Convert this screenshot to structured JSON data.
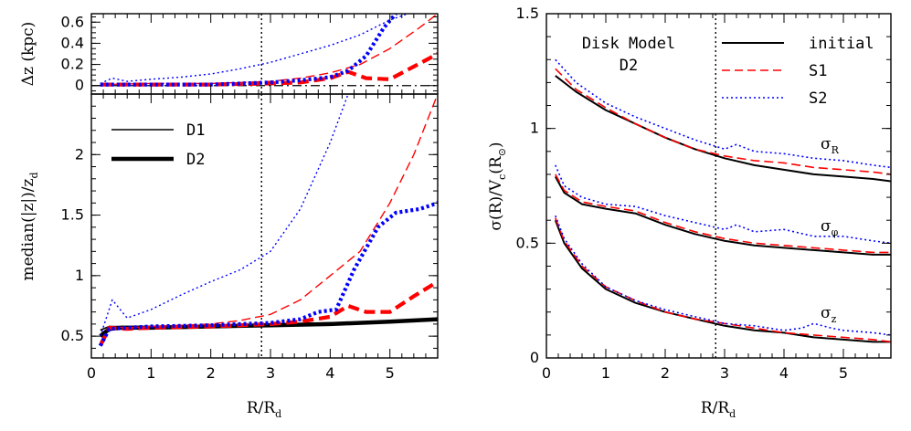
{
  "colors": {
    "black": "#000000",
    "red": "#ff0000",
    "blue": "#0000ff"
  },
  "panels": {
    "top_left": {
      "ylabel": "Δz (kpc)",
      "yticks": [
        "0",
        "0.2",
        "0.4",
        "0.6"
      ],
      "xticks": []
    },
    "bottom_left": {
      "ylabel_main": "median(|z|)/z",
      "ylabel_sub": "d",
      "xlabel_main": "R/R",
      "xlabel_sub": "d",
      "yticks": [
        "0.5",
        "1",
        "1.5",
        "2"
      ],
      "xticks": [
        "0",
        "1",
        "2",
        "3",
        "4",
        "5"
      ],
      "legend": {
        "d1": "D1",
        "d2": "D2"
      }
    },
    "right": {
      "ylabel": "σ(R)/V",
      "ylabel_c": "c",
      "ylabel_tail": "(R",
      "ylabel_sun": "⊙",
      "ylabel_close": ")",
      "xlabel_main": "R/R",
      "xlabel_sub": "d",
      "yticks": [
        "0",
        "0.5",
        "1",
        "1.5"
      ],
      "xticks": [
        "0",
        "1",
        "2",
        "3",
        "4",
        "5"
      ],
      "title_line1": "Disk Model",
      "title_line2": "D2",
      "legend": {
        "initial": "initial",
        "s1": "S1",
        "s2": "S2"
      },
      "labels": {
        "sigma": "σ",
        "r": "R",
        "phi": "φ",
        "z": "z"
      }
    }
  },
  "chart_data": [
    {
      "type": "line",
      "panel": "top_left",
      "ylabel": "Δz (kpc)",
      "xlim": [
        0,
        5.8
      ],
      "ylim": [
        -0.08,
        0.68
      ],
      "vline_x": 2.85,
      "hline_y": 0,
      "series": [
        {
          "color": "red",
          "style": "dashed",
          "weight": "thin",
          "x": [
            0.15,
            1,
            2,
            2.5,
            3,
            3.5,
            4,
            4.5,
            5,
            5.5,
            5.8
          ],
          "y": [
            0.01,
            0.02,
            0.02,
            0.03,
            0.04,
            0.07,
            0.12,
            0.2,
            0.35,
            0.55,
            0.68
          ]
        },
        {
          "color": "blue",
          "style": "dotted",
          "weight": "thin",
          "x": [
            0.15,
            0.35,
            0.6,
            1,
            1.5,
            2,
            2.5,
            3,
            3.5,
            4,
            4.5,
            5,
            5.3
          ],
          "y": [
            0.02,
            0.07,
            0.04,
            0.06,
            0.08,
            0.11,
            0.16,
            0.22,
            0.3,
            0.38,
            0.48,
            0.62,
            0.68
          ]
        },
        {
          "color": "red",
          "style": "dashed",
          "weight": "thick",
          "x": [
            0.15,
            1,
            2,
            3,
            3.5,
            4,
            4.3,
            4.6,
            5,
            5.4,
            5.8
          ],
          "y": [
            0.01,
            0.01,
            0.01,
            0.02,
            0.03,
            0.07,
            0.13,
            0.07,
            0.06,
            0.18,
            0.3
          ]
        },
        {
          "color": "blue",
          "style": "dotted",
          "weight": "thick",
          "x": [
            0.15,
            1,
            2,
            3,
            3.5,
            4,
            4.3,
            4.6,
            4.9,
            5.1
          ],
          "y": [
            0.01,
            0.01,
            0.01,
            0.03,
            0.05,
            0.08,
            0.14,
            0.28,
            0.55,
            0.68
          ]
        }
      ]
    },
    {
      "type": "line",
      "panel": "bottom_left",
      "ylabel": "median(|z|)/z_d",
      "xlabel": "R/R_d",
      "xlim": [
        0,
        5.8
      ],
      "ylim": [
        0.32,
        2.5
      ],
      "vline_x": 2.85,
      "series": [
        {
          "name": "D1",
          "color": "black",
          "style": "solid",
          "weight": "thin",
          "x": [
            0.15,
            0.3,
            0.5,
            1,
            2,
            3,
            4,
            5,
            5.8
          ],
          "y": [
            0.55,
            0.58,
            0.58,
            0.58,
            0.59,
            0.6,
            0.61,
            0.62,
            0.63
          ]
        },
        {
          "name": "D2",
          "color": "black",
          "style": "solid",
          "weight": "thick",
          "x": [
            0.15,
            0.3,
            0.5,
            1,
            2,
            3,
            4,
            5,
            5.8
          ],
          "y": [
            0.5,
            0.56,
            0.57,
            0.57,
            0.58,
            0.59,
            0.6,
            0.62,
            0.64
          ]
        },
        {
          "color": "red",
          "style": "dashed",
          "weight": "thin",
          "x": [
            0.15,
            0.3,
            0.6,
            1,
            2,
            2.5,
            3,
            3.5,
            4,
            4.5,
            5,
            5.4,
            5.8
          ],
          "y": [
            0.45,
            0.58,
            0.57,
            0.58,
            0.6,
            0.63,
            0.68,
            0.8,
            1.0,
            1.2,
            1.6,
            2.0,
            2.5
          ]
        },
        {
          "color": "blue",
          "style": "dotted",
          "weight": "thin",
          "x": [
            0.15,
            0.35,
            0.6,
            1,
            1.5,
            2,
            2.5,
            3,
            3.5,
            4,
            4.3
          ],
          "y": [
            0.5,
            0.8,
            0.65,
            0.72,
            0.84,
            0.95,
            1.05,
            1.2,
            1.55,
            2.1,
            2.5
          ]
        },
        {
          "color": "red",
          "style": "dashed",
          "weight": "thick",
          "x": [
            0.15,
            0.3,
            0.6,
            1,
            2,
            3,
            3.5,
            4,
            4.3,
            4.6,
            5,
            5.4,
            5.8
          ],
          "y": [
            0.42,
            0.57,
            0.56,
            0.57,
            0.58,
            0.6,
            0.62,
            0.66,
            0.75,
            0.7,
            0.7,
            0.83,
            0.95
          ]
        },
        {
          "color": "blue",
          "style": "dotted",
          "weight": "thick",
          "x": [
            0.15,
            0.3,
            0.6,
            1,
            2,
            3,
            3.5,
            3.8,
            4.1,
            4.4,
            4.8,
            5.1,
            5.5,
            5.8
          ],
          "y": [
            0.42,
            0.56,
            0.57,
            0.58,
            0.59,
            0.61,
            0.64,
            0.7,
            0.72,
            1.05,
            1.4,
            1.52,
            1.55,
            1.6
          ]
        }
      ]
    },
    {
      "type": "line",
      "panel": "right",
      "ylabel": "σ(R)/V_c(R_⊙)",
      "xlabel": "R/R_d",
      "xlim": [
        0,
        5.8
      ],
      "ylim": [
        0,
        1.5
      ],
      "vline_x": 2.85,
      "series": [
        {
          "name": "initial",
          "color": "black",
          "style": "solid",
          "group": "sigma_R",
          "x": [
            0.15,
            0.5,
            1,
            1.5,
            2,
            2.5,
            3,
            3.5,
            4,
            4.5,
            5,
            5.5,
            5.8
          ],
          "y": [
            1.23,
            1.16,
            1.08,
            1.02,
            0.96,
            0.91,
            0.87,
            0.84,
            0.82,
            0.8,
            0.79,
            0.78,
            0.77
          ]
        },
        {
          "name": "S1",
          "color": "red",
          "style": "dashed",
          "group": "sigma_R",
          "x": [
            0.15,
            0.5,
            1,
            1.5,
            2,
            2.5,
            3,
            3.5,
            4,
            4.5,
            5,
            5.5,
            5.8
          ],
          "y": [
            1.26,
            1.17,
            1.09,
            1.02,
            0.96,
            0.91,
            0.88,
            0.86,
            0.85,
            0.83,
            0.82,
            0.81,
            0.8
          ]
        },
        {
          "name": "S2",
          "color": "blue",
          "style": "dotted",
          "group": "sigma_R",
          "x": [
            0.15,
            0.5,
            1,
            1.5,
            2,
            2.5,
            3,
            3.2,
            3.5,
            4,
            4.5,
            5,
            5.5,
            5.8
          ],
          "y": [
            1.3,
            1.2,
            1.11,
            1.05,
            1.0,
            0.95,
            0.91,
            0.93,
            0.9,
            0.89,
            0.87,
            0.86,
            0.84,
            0.83
          ]
        },
        {
          "color": "black",
          "style": "solid",
          "group": "sigma_phi",
          "x": [
            0.15,
            0.3,
            0.6,
            1,
            1.5,
            2,
            2.5,
            3,
            3.5,
            4,
            4.5,
            5,
            5.5,
            5.8
          ],
          "y": [
            0.79,
            0.72,
            0.67,
            0.65,
            0.63,
            0.58,
            0.54,
            0.51,
            0.49,
            0.48,
            0.47,
            0.46,
            0.45,
            0.45
          ]
        },
        {
          "color": "red",
          "style": "dashed",
          "group": "sigma_phi",
          "x": [
            0.15,
            0.3,
            0.6,
            1,
            1.5,
            2,
            2.5,
            3,
            3.5,
            4,
            4.5,
            5,
            5.5,
            5.8
          ],
          "y": [
            0.8,
            0.73,
            0.68,
            0.66,
            0.64,
            0.59,
            0.55,
            0.52,
            0.5,
            0.49,
            0.48,
            0.47,
            0.46,
            0.46
          ]
        },
        {
          "color": "blue",
          "style": "dotted",
          "group": "sigma_phi",
          "x": [
            0.15,
            0.3,
            0.6,
            1,
            1.5,
            2,
            2.5,
            3,
            3.2,
            3.5,
            4,
            4.5,
            5,
            5.5,
            5.8
          ],
          "y": [
            0.84,
            0.75,
            0.7,
            0.67,
            0.66,
            0.62,
            0.59,
            0.56,
            0.58,
            0.55,
            0.56,
            0.53,
            0.53,
            0.51,
            0.5
          ]
        },
        {
          "color": "black",
          "style": "solid",
          "group": "sigma_z",
          "x": [
            0.15,
            0.3,
            0.6,
            1,
            1.5,
            2,
            2.5,
            3,
            3.5,
            4,
            4.5,
            5,
            5.5,
            5.8
          ],
          "y": [
            0.6,
            0.5,
            0.39,
            0.3,
            0.24,
            0.2,
            0.17,
            0.14,
            0.12,
            0.11,
            0.09,
            0.08,
            0.07,
            0.07
          ]
        },
        {
          "color": "red",
          "style": "dashed",
          "group": "sigma_z",
          "x": [
            0.15,
            0.3,
            0.6,
            1,
            1.5,
            2,
            2.5,
            3,
            3.5,
            4,
            4.5,
            5,
            5.5,
            5.8
          ],
          "y": [
            0.61,
            0.51,
            0.4,
            0.31,
            0.25,
            0.2,
            0.17,
            0.15,
            0.13,
            0.11,
            0.1,
            0.09,
            0.08,
            0.07
          ]
        },
        {
          "color": "blue",
          "style": "dotted",
          "group": "sigma_z",
          "x": [
            0.15,
            0.3,
            0.6,
            1,
            1.5,
            2,
            2.5,
            3,
            3.5,
            4,
            4.3,
            4.5,
            4.8,
            5,
            5.5,
            5.8
          ],
          "y": [
            0.62,
            0.52,
            0.41,
            0.31,
            0.25,
            0.21,
            0.18,
            0.15,
            0.14,
            0.12,
            0.13,
            0.15,
            0.13,
            0.12,
            0.11,
            0.1
          ]
        }
      ]
    }
  ]
}
